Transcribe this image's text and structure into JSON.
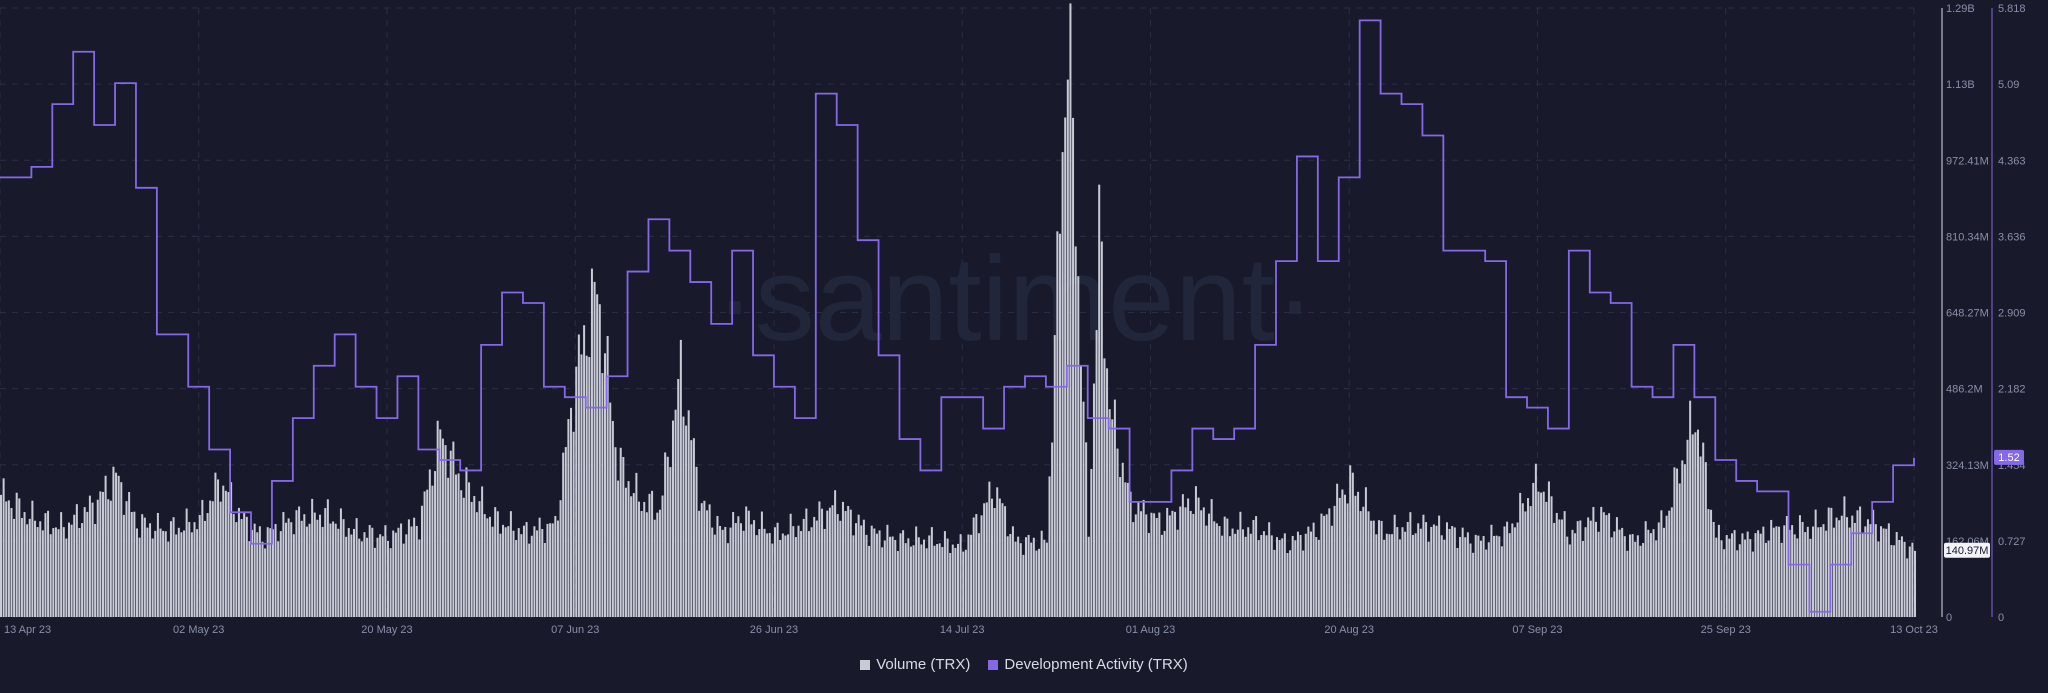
{
  "colors": {
    "background": "#181a2c",
    "volume": "#c8cad6",
    "dev_activity": "#8468e8",
    "grid": "#2a2e44"
  },
  "watermark": "·santiment·",
  "chart_data": {
    "type": "bar+line",
    "x_range": [
      "2023-04-13",
      "2023-10-13"
    ],
    "x_ticks": [
      "13 Apr 23",
      "02 May 23",
      "20 May 23",
      "07 Jun 23",
      "26 Jun 23",
      "14 Jul 23",
      "01 Aug 23",
      "20 Aug 23",
      "07 Sep 23",
      "25 Sep 23",
      "13 Oct 23"
    ],
    "volume_axis": {
      "ticks": [
        "1.29B",
        "1.13B",
        "972.41M",
        "810.34M",
        "648.27M",
        "486.2M",
        "324.13M",
        "162.06M",
        "0"
      ],
      "tick_values": [
        1296550000,
        1134480000,
        972410000,
        810340000,
        648270000,
        486200000,
        324130000,
        162060000,
        0
      ],
      "range": [
        0,
        1296550000
      ],
      "current_label": "140.97M"
    },
    "dev_axis": {
      "ticks": [
        "5.818",
        "5.09",
        "4.363",
        "3.636",
        "2.909",
        "2.182",
        "1.454",
        "0.727",
        "0"
      ],
      "tick_values": [
        5.818,
        5.09,
        4.363,
        3.636,
        2.909,
        2.182,
        1.454,
        0.727,
        0
      ],
      "range": [
        0,
        5.818
      ],
      "current_label": "1.52"
    },
    "series": [
      {
        "name": "Volume (TRX)",
        "type": "bar",
        "points": [
          [
            "2023-04-13",
            260
          ],
          [
            "2023-04-16",
            210
          ],
          [
            "2023-04-19",
            190
          ],
          [
            "2023-04-22",
            240
          ],
          [
            "2023-04-24",
            300
          ],
          [
            "2023-04-26",
            200
          ],
          [
            "2023-04-29",
            185
          ],
          [
            "2023-05-02",
            205
          ],
          [
            "2023-05-04",
            290
          ],
          [
            "2023-05-06",
            210
          ],
          [
            "2023-05-08",
            170
          ],
          [
            "2023-05-11",
            210
          ],
          [
            "2023-05-14",
            220
          ],
          [
            "2023-05-17",
            180
          ],
          [
            "2023-05-20",
            170
          ],
          [
            "2023-05-23",
            200
          ],
          [
            "2023-05-25",
            390
          ],
          [
            "2023-05-27",
            290
          ],
          [
            "2023-05-30",
            210
          ],
          [
            "2023-06-02",
            180
          ],
          [
            "2023-06-05",
            195
          ],
          [
            "2023-06-07",
            520
          ],
          [
            "2023-06-09",
            700
          ],
          [
            "2023-06-11",
            330
          ],
          [
            "2023-06-13",
            250
          ],
          [
            "2023-06-15",
            230
          ],
          [
            "2023-06-17",
            520
          ],
          [
            "2023-06-19",
            240
          ],
          [
            "2023-06-21",
            180
          ],
          [
            "2023-06-23",
            215
          ],
          [
            "2023-06-26",
            175
          ],
          [
            "2023-06-29",
            200
          ],
          [
            "2023-07-02",
            240
          ],
          [
            "2023-07-05",
            180
          ],
          [
            "2023-07-08",
            165
          ],
          [
            "2023-07-11",
            165
          ],
          [
            "2023-07-14",
            150
          ],
          [
            "2023-07-17",
            275
          ],
          [
            "2023-07-19",
            160
          ],
          [
            "2023-07-22",
            160
          ],
          [
            "2023-07-24",
            1270
          ],
          [
            "2023-07-26",
            180
          ],
          [
            "2023-07-27",
            820
          ],
          [
            "2023-07-28",
            450
          ],
          [
            "2023-07-30",
            240
          ],
          [
            "2023-08-02",
            200
          ],
          [
            "2023-08-05",
            250
          ],
          [
            "2023-08-08",
            190
          ],
          [
            "2023-08-11",
            190
          ],
          [
            "2023-08-14",
            155
          ],
          [
            "2023-08-17",
            190
          ],
          [
            "2023-08-20",
            290
          ],
          [
            "2023-08-23",
            180
          ],
          [
            "2023-08-26",
            195
          ],
          [
            "2023-08-29",
            190
          ],
          [
            "2023-09-01",
            160
          ],
          [
            "2023-09-04",
            180
          ],
          [
            "2023-09-07",
            290
          ],
          [
            "2023-09-10",
            175
          ],
          [
            "2023-09-13",
            220
          ],
          [
            "2023-09-16",
            160
          ],
          [
            "2023-09-19",
            200
          ],
          [
            "2023-09-22",
            430
          ],
          [
            "2023-09-24",
            170
          ],
          [
            "2023-09-27",
            165
          ],
          [
            "2023-09-30",
            190
          ],
          [
            "2023-10-03",
            190
          ],
          [
            "2023-10-06",
            220
          ],
          [
            "2023-10-09",
            200
          ],
          [
            "2023-10-13",
            141
          ]
        ],
        "unit": "millions TRX"
      },
      {
        "name": "Development Activity (TRX)",
        "type": "line",
        "points": [
          [
            "2023-04-13",
            4.2
          ],
          [
            "2023-04-16",
            4.3
          ],
          [
            "2023-04-18",
            4.9
          ],
          [
            "2023-04-20",
            5.4
          ],
          [
            "2023-04-22",
            4.7
          ],
          [
            "2023-04-24",
            5.1
          ],
          [
            "2023-04-26",
            4.1
          ],
          [
            "2023-04-28",
            2.7
          ],
          [
            "2023-05-01",
            2.2
          ],
          [
            "2023-05-03",
            1.6
          ],
          [
            "2023-05-05",
            1.0
          ],
          [
            "2023-05-07",
            0.7
          ],
          [
            "2023-05-09",
            1.3
          ],
          [
            "2023-05-11",
            1.9
          ],
          [
            "2023-05-13",
            2.4
          ],
          [
            "2023-05-15",
            2.7
          ],
          [
            "2023-05-17",
            2.2
          ],
          [
            "2023-05-19",
            1.9
          ],
          [
            "2023-05-21",
            2.3
          ],
          [
            "2023-05-23",
            1.6
          ],
          [
            "2023-05-25",
            1.5
          ],
          [
            "2023-05-27",
            1.4
          ],
          [
            "2023-05-29",
            2.6
          ],
          [
            "2023-05-31",
            3.1
          ],
          [
            "2023-06-02",
            3.0
          ],
          [
            "2023-06-04",
            2.2
          ],
          [
            "2023-06-06",
            2.1
          ],
          [
            "2023-06-08",
            2.0
          ],
          [
            "2023-06-10",
            2.3
          ],
          [
            "2023-06-12",
            3.3
          ],
          [
            "2023-06-14",
            3.8
          ],
          [
            "2023-06-16",
            3.5
          ],
          [
            "2023-06-18",
            3.2
          ],
          [
            "2023-06-20",
            2.8
          ],
          [
            "2023-06-22",
            3.5
          ],
          [
            "2023-06-24",
            2.5
          ],
          [
            "2023-06-26",
            2.2
          ],
          [
            "2023-06-28",
            1.9
          ],
          [
            "2023-06-30",
            5.0
          ],
          [
            "2023-07-02",
            4.7
          ],
          [
            "2023-07-04",
            3.6
          ],
          [
            "2023-07-06",
            2.5
          ],
          [
            "2023-07-08",
            1.7
          ],
          [
            "2023-07-10",
            1.4
          ],
          [
            "2023-07-12",
            2.1
          ],
          [
            "2023-07-14",
            2.1
          ],
          [
            "2023-07-16",
            1.8
          ],
          [
            "2023-07-18",
            2.2
          ],
          [
            "2023-07-20",
            2.3
          ],
          [
            "2023-07-22",
            2.2
          ],
          [
            "2023-07-24",
            2.4
          ],
          [
            "2023-07-26",
            1.9
          ],
          [
            "2023-07-28",
            1.8
          ],
          [
            "2023-07-30",
            1.1
          ],
          [
            "2023-08-01",
            1.1
          ],
          [
            "2023-08-03",
            1.4
          ],
          [
            "2023-08-05",
            1.8
          ],
          [
            "2023-08-07",
            1.7
          ],
          [
            "2023-08-09",
            1.8
          ],
          [
            "2023-08-11",
            2.6
          ],
          [
            "2023-08-13",
            3.4
          ],
          [
            "2023-08-15",
            4.4
          ],
          [
            "2023-08-17",
            3.4
          ],
          [
            "2023-08-19",
            4.2
          ],
          [
            "2023-08-21",
            5.7
          ],
          [
            "2023-08-23",
            5.0
          ],
          [
            "2023-08-25",
            4.9
          ],
          [
            "2023-08-27",
            4.6
          ],
          [
            "2023-08-29",
            3.5
          ],
          [
            "2023-08-31",
            3.5
          ],
          [
            "2023-09-02",
            3.4
          ],
          [
            "2023-09-04",
            2.1
          ],
          [
            "2023-09-06",
            2.0
          ],
          [
            "2023-09-08",
            1.8
          ],
          [
            "2023-09-10",
            3.5
          ],
          [
            "2023-09-12",
            3.1
          ],
          [
            "2023-09-14",
            3.0
          ],
          [
            "2023-09-16",
            2.2
          ],
          [
            "2023-09-18",
            2.1
          ],
          [
            "2023-09-20",
            2.6
          ],
          [
            "2023-09-22",
            2.1
          ],
          [
            "2023-09-24",
            1.5
          ],
          [
            "2023-09-26",
            1.3
          ],
          [
            "2023-09-28",
            1.2
          ],
          [
            "2023-10-01",
            0.5
          ],
          [
            "2023-10-03",
            0.05
          ],
          [
            "2023-10-05",
            0.5
          ],
          [
            "2023-10-07",
            0.8
          ],
          [
            "2023-10-09",
            1.1
          ],
          [
            "2023-10-11",
            1.45
          ],
          [
            "2023-10-13",
            1.52
          ]
        ]
      }
    ],
    "legend_position": "bottom-center",
    "grid": true
  },
  "legend": {
    "volume_label": "Volume (TRX)",
    "dev_label": "Development Activity (TRX)"
  }
}
